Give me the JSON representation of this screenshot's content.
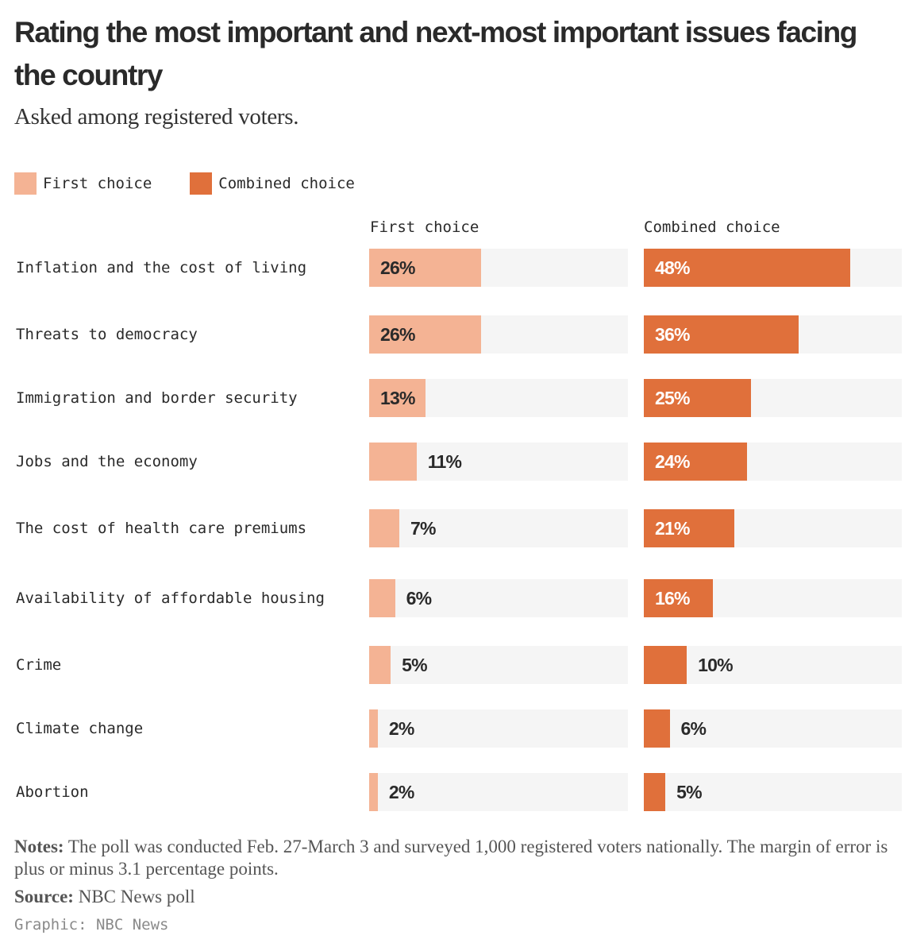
{
  "header": {
    "title": "Rating the most important and next-most important issues facing the country",
    "subtitle": "Asked among registered voters."
  },
  "legend": [
    {
      "label": "First choice",
      "color": "#f4b394"
    },
    {
      "label": "Combined choice",
      "color": "#e0703b"
    }
  ],
  "chart_data": {
    "type": "bar",
    "orientation": "horizontal",
    "title": "Rating the most important and next-most important issues facing the country",
    "subtitle": "Asked among registered voters.",
    "xlim": [
      0,
      60
    ],
    "categories": [
      "Inflation and the cost of living",
      "Threats to democracy",
      "Immigration and border security",
      "Jobs and the economy",
      "The cost of health care premiums",
      "Availability of affordable housing",
      "Crime",
      "Climate change",
      "Abortion"
    ],
    "series": [
      {
        "name": "First choice",
        "color": "#f4b394",
        "values": [
          26,
          26,
          13,
          11,
          7,
          6,
          5,
          2,
          2
        ]
      },
      {
        "name": "Combined choice",
        "color": "#e0703b",
        "values": [
          48,
          36,
          25,
          24,
          21,
          16,
          10,
          6,
          5
        ]
      }
    ]
  },
  "footer": {
    "notes_label": "Notes:",
    "notes_text": " The poll was conducted Feb. 27-March 3 and surveyed 1,000 registered voters nationally. The margin of error is plus or minus 3.1 percentage points.",
    "source_label": "Source:",
    "source_text": " NBC News poll",
    "credit": "Graphic: NBC News"
  }
}
